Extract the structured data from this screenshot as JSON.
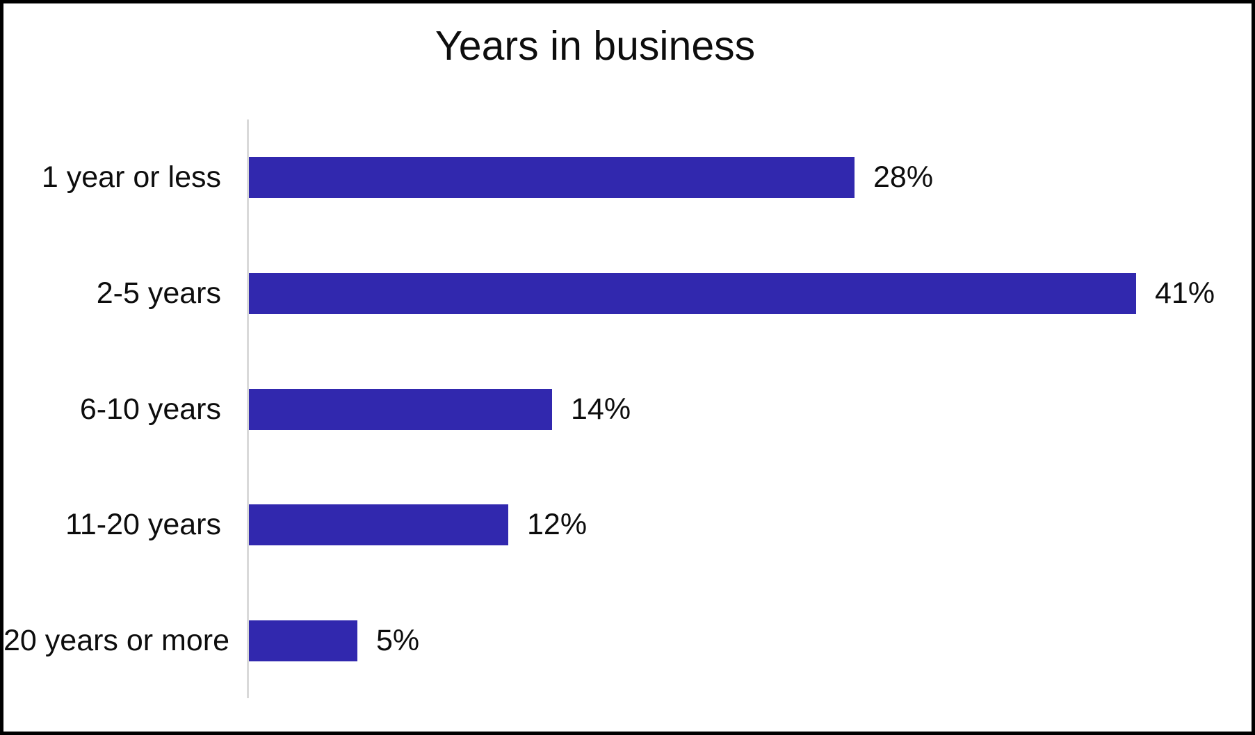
{
  "chart_data": {
    "type": "bar",
    "orientation": "horizontal",
    "title": "Years in business",
    "categories": [
      "1 year or less",
      "2-5 years",
      "6-10 years",
      "11-20 years",
      "20 years or more"
    ],
    "values": [
      28,
      41,
      14,
      12,
      5
    ],
    "value_labels": [
      "28%",
      "41%",
      "14%",
      "12%",
      "5%"
    ],
    "unit": "percent",
    "xlim": [
      0,
      45
    ],
    "grid": "off",
    "legend": "none",
    "bar_color": "#3128ae",
    "axis_line_color": "#d9d9d9",
    "text_color": "#0d0d0d",
    "background_color": "#ffffff",
    "border_color": "#000000"
  }
}
